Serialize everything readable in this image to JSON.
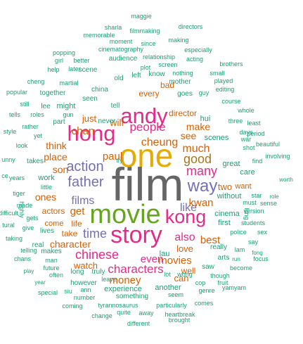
{
  "chart_data": {
    "type": "wordcloud",
    "title": "",
    "colors": {
      "green": "#1b9e77",
      "orange": "#d95f02",
      "purple": "#7570b3",
      "magenta": "#e7298a",
      "lime": "#66a61e",
      "gold": "#e6ab02",
      "brown": "#a6761d",
      "gray": "#666666"
    },
    "words": [
      {
        "text": "film",
        "tier": "gray"
      },
      {
        "text": "one",
        "tier": "gold"
      },
      {
        "text": "movie",
        "tier": "lime"
      },
      {
        "text": "story",
        "tier": "magenta"
      },
      {
        "text": "hong",
        "tier": "magenta"
      },
      {
        "text": "andy",
        "tier": "magenta"
      },
      {
        "text": "kong",
        "tier": "magenta"
      },
      {
        "text": "people",
        "tier": "magenta"
      },
      {
        "text": "action",
        "tier": "purple"
      },
      {
        "text": "father",
        "tier": "purple"
      },
      {
        "text": "way",
        "tier": "purple"
      },
      {
        "text": "films",
        "tier": "purple"
      },
      {
        "text": "like",
        "tier": "purple"
      },
      {
        "text": "good",
        "tier": "brown"
      },
      {
        "text": "many",
        "tier": "magenta"
      },
      {
        "text": "chinese",
        "tier": "magenta"
      },
      {
        "text": "characters",
        "tier": "magenta"
      },
      {
        "text": "time",
        "tier": "purple"
      },
      {
        "text": "much",
        "tier": "orange"
      },
      {
        "text": "cheung",
        "tier": "orange"
      },
      {
        "text": "paul",
        "tier": "orange"
      },
      {
        "text": "chan",
        "tier": "orange"
      },
      {
        "text": "son",
        "tier": "orange"
      },
      {
        "text": "place",
        "tier": "orange"
      },
      {
        "text": "think",
        "tier": "orange"
      },
      {
        "text": "get",
        "tier": "orange"
      },
      {
        "text": "ones",
        "tier": "orange"
      },
      {
        "text": "also",
        "tier": "magenta"
      },
      {
        "text": "even",
        "tier": "magenta"
      },
      {
        "text": "money",
        "tier": "orange"
      },
      {
        "text": "movies",
        "tier": "orange"
      },
      {
        "text": "kwan",
        "tier": "orange"
      },
      {
        "text": "best",
        "tier": "orange"
      },
      {
        "text": "love",
        "tier": "orange"
      },
      {
        "text": "make",
        "tier": "orange"
      },
      {
        "text": "see",
        "tier": "orange"
      },
      {
        "text": "will",
        "tier": "orange"
      },
      {
        "text": "two",
        "tier": "orange"
      },
      {
        "text": "character",
        "tier": "orange"
      },
      {
        "text": "watch",
        "tier": "orange"
      },
      {
        "text": "actors",
        "tier": "orange"
      },
      {
        "text": "life",
        "tier": "orange"
      },
      {
        "text": "can",
        "tier": "orange"
      },
      {
        "text": "well",
        "tier": "orange"
      },
      {
        "text": "just",
        "tier": "orange"
      },
      {
        "text": "director",
        "tier": "orange"
      },
      {
        "text": "every",
        "tier": "orange"
      },
      {
        "text": "bad",
        "tier": "orange"
      },
      {
        "text": "take",
        "tier": "orange"
      },
      {
        "text": "come",
        "tier": "orange"
      },
      {
        "text": "want",
        "tier": "orange"
      },
      {
        "text": "scenes",
        "tier": "green"
      },
      {
        "text": "maggie",
        "tier": "green"
      },
      {
        "text": "sharla",
        "tier": "green"
      },
      {
        "text": "filmmaking",
        "tier": "green"
      },
      {
        "text": "directors",
        "tier": "green"
      },
      {
        "text": "memorable",
        "tier": "green"
      },
      {
        "text": "moment",
        "tier": "green"
      },
      {
        "text": "since",
        "tier": "green"
      },
      {
        "text": "making",
        "tier": "green"
      },
      {
        "text": "especially",
        "tier": "green"
      },
      {
        "text": "popping",
        "tier": "green"
      },
      {
        "text": "cinematography",
        "tier": "green"
      },
      {
        "text": "relationship",
        "tier": "green"
      },
      {
        "text": "acting",
        "tier": "green"
      },
      {
        "text": "girl",
        "tier": "green"
      },
      {
        "text": "better",
        "tier": "green"
      },
      {
        "text": "audience",
        "tier": "green"
      },
      {
        "text": "screen",
        "tier": "green"
      },
      {
        "text": "brothers",
        "tier": "green"
      },
      {
        "text": "help",
        "tier": "green"
      },
      {
        "text": "later",
        "tier": "green"
      },
      {
        "text": "plot",
        "tier": "green"
      },
      {
        "text": "nothing",
        "tier": "green"
      },
      {
        "text": "small",
        "tier": "green"
      },
      {
        "text": "scene",
        "tier": "green"
      },
      {
        "text": "know",
        "tier": "green"
      },
      {
        "text": "played",
        "tier": "green"
      },
      {
        "text": "old",
        "tier": "green"
      },
      {
        "text": "left",
        "tier": "green"
      },
      {
        "text": "mother",
        "tier": "green"
      },
      {
        "text": "cheng",
        "tier": "green"
      },
      {
        "text": "martial",
        "tier": "green"
      },
      {
        "text": "editing",
        "tier": "green"
      },
      {
        "text": "china",
        "tier": "green"
      },
      {
        "text": "goes",
        "tier": "green"
      },
      {
        "text": "guy",
        "tier": "green"
      },
      {
        "text": "popular",
        "tier": "green"
      },
      {
        "text": "together",
        "tier": "green"
      },
      {
        "text": "seen",
        "tier": "green"
      },
      {
        "text": "course",
        "tier": "green"
      },
      {
        "text": "still",
        "tier": "green"
      },
      {
        "text": "lee",
        "tier": "green"
      },
      {
        "text": "might",
        "tier": "green"
      },
      {
        "text": "tell",
        "tier": "green"
      },
      {
        "text": "whole",
        "tier": "green"
      },
      {
        "text": "tells",
        "tier": "green"
      },
      {
        "text": "roles",
        "tier": "green"
      },
      {
        "text": "gun",
        "tier": "green"
      },
      {
        "text": "part",
        "tier": "green"
      },
      {
        "text": "never",
        "tier": "green"
      },
      {
        "text": "hui",
        "tier": "green"
      },
      {
        "text": "three",
        "tier": "green"
      },
      {
        "text": "least",
        "tier": "green"
      },
      {
        "text": "style",
        "tier": "green"
      },
      {
        "text": "rather",
        "tier": "green"
      },
      {
        "text": "period",
        "tier": "green"
      },
      {
        "text": "days",
        "tier": "green"
      },
      {
        "text": "yet",
        "tier": "green"
      },
      {
        "text": "war",
        "tier": "green"
      },
      {
        "text": "look",
        "tier": "green"
      },
      {
        "text": "beautiful",
        "tier": "green"
      },
      {
        "text": "shot",
        "tier": "green"
      },
      {
        "text": "unny",
        "tier": "green"
      },
      {
        "text": "takes",
        "tier": "green"
      },
      {
        "text": "try",
        "tier": "green"
      },
      {
        "text": "involving",
        "tier": "green"
      },
      {
        "text": "find",
        "tier": "green"
      },
      {
        "text": "years",
        "tier": "green"
      },
      {
        "text": "work",
        "tier": "green"
      },
      {
        "text": "great",
        "tier": "green"
      },
      {
        "text": "care",
        "tier": "green"
      },
      {
        "text": "ce",
        "tier": "green"
      },
      {
        "text": "little",
        "tier": "green"
      },
      {
        "text": "tiger",
        "tier": "green"
      },
      {
        "text": "without",
        "tier": "green"
      },
      {
        "text": "star",
        "tier": "green"
      },
      {
        "text": "role",
        "tier": "green"
      },
      {
        "text": "worth",
        "tier": "green"
      },
      {
        "text": "must",
        "tier": "green"
      },
      {
        "text": "sense",
        "tier": "green"
      },
      {
        "text": "made",
        "tier": "green"
      },
      {
        "text": "version",
        "tier": "green"
      },
      {
        "text": "difficult",
        "tier": "green"
      },
      {
        "text": "gets",
        "tier": "green"
      },
      {
        "text": "cinema",
        "tier": "green"
      },
      {
        "text": "first",
        "tier": "green"
      },
      {
        "text": "students",
        "tier": "green"
      },
      {
        "text": "tural",
        "tier": "green"
      },
      {
        "text": "give",
        "tier": "green"
      },
      {
        "text": "lives",
        "tier": "green"
      },
      {
        "text": "police",
        "tier": "green"
      },
      {
        "text": "sex",
        "tier": "green"
      },
      {
        "text": "taking",
        "tier": "green"
      },
      {
        "text": "real",
        "tier": "green"
      },
      {
        "text": "lau",
        "tier": "green"
      },
      {
        "text": "really",
        "tier": "green"
      },
      {
        "text": "say",
        "tier": "green"
      },
      {
        "text": "fong",
        "tier": "green"
      },
      {
        "text": "telling",
        "tier": "green"
      },
      {
        "text": "makes",
        "tier": "green"
      },
      {
        "text": "lam",
        "tier": "green"
      },
      {
        "text": "focus",
        "tier": "green"
      },
      {
        "text": "chans",
        "tier": "green"
      },
      {
        "text": "man",
        "tier": "green"
      },
      {
        "text": "arts",
        "tier": "green"
      },
      {
        "text": "run",
        "tier": "green"
      },
      {
        "text": "play",
        "tier": "green"
      },
      {
        "text": "future",
        "tier": "green"
      },
      {
        "text": "saw",
        "tier": "green"
      },
      {
        "text": "become",
        "tier": "green"
      },
      {
        "text": "often",
        "tier": "green"
      },
      {
        "text": "long",
        "tier": "green"
      },
      {
        "text": "truly",
        "tier": "green"
      },
      {
        "text": "year",
        "tier": "green"
      },
      {
        "text": "lot",
        "tier": "green"
      },
      {
        "text": "wong",
        "tier": "green"
      },
      {
        "text": "though",
        "tier": "green"
      },
      {
        "text": "however",
        "tier": "green"
      },
      {
        "text": "leave",
        "tier": "green"
      },
      {
        "text": "cop",
        "tier": "green"
      },
      {
        "text": "fruit",
        "tier": "green"
      },
      {
        "text": "siu",
        "tier": "green"
      },
      {
        "text": "ann",
        "tier": "green"
      },
      {
        "text": "genre",
        "tier": "green"
      },
      {
        "text": "yamyam",
        "tier": "green"
      },
      {
        "text": "special",
        "tier": "green"
      },
      {
        "text": "number",
        "tier": "green"
      },
      {
        "text": "seem",
        "tier": "green"
      },
      {
        "text": "coming",
        "tier": "green"
      },
      {
        "text": "tyrannosaurus",
        "tier": "green"
      },
      {
        "text": "particularly",
        "tier": "green"
      },
      {
        "text": "comes",
        "tier": "green"
      },
      {
        "text": "change",
        "tier": "green"
      },
      {
        "text": "quite",
        "tier": "green"
      },
      {
        "text": "away",
        "tier": "green"
      },
      {
        "text": "heartbreak",
        "tier": "green"
      },
      {
        "text": "different",
        "tier": "green"
      },
      {
        "text": "brought",
        "tier": "green"
      },
      {
        "text": "experience",
        "tier": "green"
      },
      {
        "text": "something",
        "tier": "green"
      },
      {
        "text": "another",
        "tier": "green"
      },
      {
        "text": "highly",
        "tier": "green"
      },
      {
        "text": "lung",
        "tier": "green"
      }
    ]
  }
}
